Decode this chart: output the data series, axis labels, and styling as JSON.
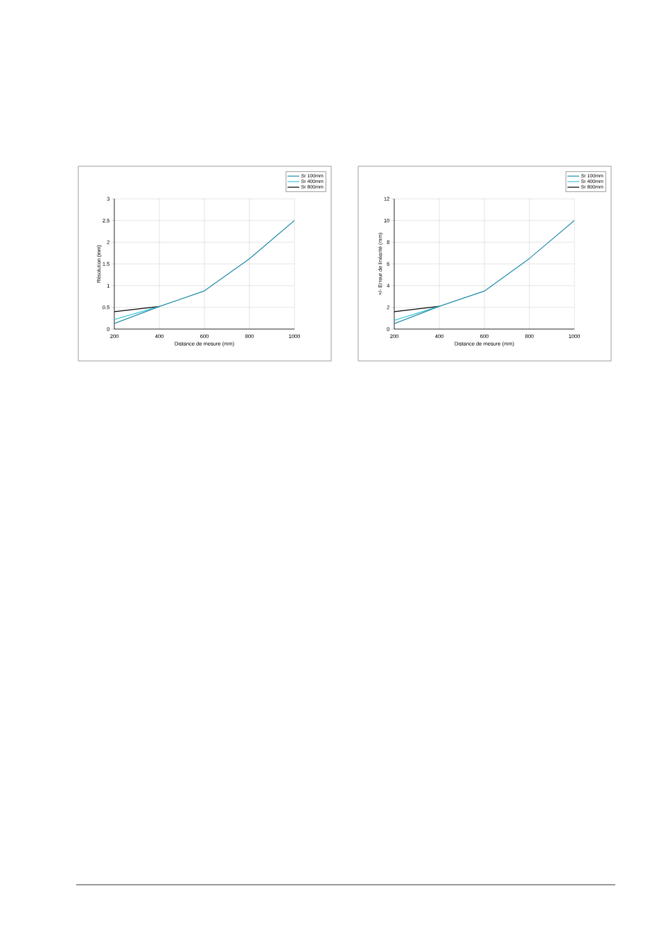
{
  "chart_data": [
    {
      "type": "line",
      "xlabel": "Distance de mesure (mm)",
      "ylabel": "Résolution (mm)",
      "x": [
        200,
        400,
        600,
        800,
        1000
      ],
      "xlim": [
        200,
        1000
      ],
      "ylim": [
        0,
        3
      ],
      "xticks": [
        200,
        400,
        600,
        800,
        1000
      ],
      "yticks": [
        0,
        0.5,
        1,
        1.5,
        2,
        2.5,
        3
      ],
      "grid": true,
      "legend": "top right",
      "series": [
        {
          "name": "Sr 100mm",
          "color": "#1c8aa8",
          "values": [
            0.13,
            0.52,
            0.88,
            1.62,
            2.5
          ]
        },
        {
          "name": "Sr 400mm",
          "color": "#3ec6d8",
          "values": [
            0.22,
            0.52,
            null,
            null,
            null
          ]
        },
        {
          "name": "Sr 800mm",
          "color": "#000000",
          "values": [
            0.4,
            0.52,
            null,
            null,
            null
          ]
        }
      ]
    },
    {
      "type": "line",
      "xlabel": "Distance de mesure (mm)",
      "ylabel": "+/- Erreur de linéarité (mm)",
      "x": [
        200,
        400,
        600,
        800,
        1000
      ],
      "xlim": [
        200,
        1000
      ],
      "ylim": [
        0,
        12
      ],
      "xticks": [
        200,
        400,
        600,
        800,
        1000
      ],
      "yticks": [
        0,
        2,
        4,
        6,
        8,
        10,
        12
      ],
      "grid": true,
      "legend": "top right",
      "series": [
        {
          "name": "Sr 100mm",
          "color": "#1c8aa8",
          "values": [
            0.5,
            2.1,
            3.5,
            6.5,
            10
          ]
        },
        {
          "name": "Sr 400mm",
          "color": "#3ec6d8",
          "values": [
            0.8,
            2.1,
            null,
            null,
            null
          ]
        },
        {
          "name": "Sr 800mm",
          "color": "#000000",
          "values": [
            1.6,
            2.1,
            null,
            null,
            null
          ]
        }
      ]
    }
  ]
}
